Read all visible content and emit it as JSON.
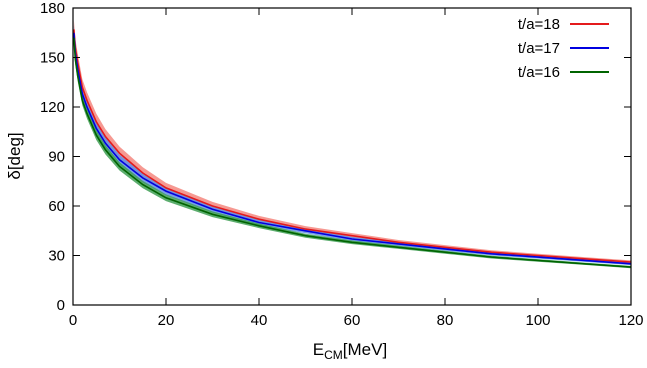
{
  "chart_data": {
    "type": "line",
    "title": "",
    "xlabel_main": "E",
    "xlabel_sub": "CM",
    "xlabel_unit": "[MeV]",
    "ylabel": "δ[deg]",
    "xlim": [
      0,
      120
    ],
    "ylim": [
      0,
      180
    ],
    "xticks": [
      0,
      20,
      40,
      60,
      80,
      100,
      120
    ],
    "yticks": [
      0,
      30,
      60,
      90,
      120,
      150,
      180
    ],
    "grid": false,
    "legend_position": "top-right",
    "series": [
      {
        "name": "t/a=18",
        "color": "#e41a1c",
        "band_color": "#f4877f",
        "x": [
          0.2,
          0.5,
          1,
          2,
          3,
          5,
          7,
          10,
          15,
          20,
          30,
          40,
          50,
          60,
          70,
          80,
          90,
          100,
          110,
          120
        ],
        "y": [
          167,
          156,
          147,
          132,
          124,
          111,
          102,
          92,
          80,
          71,
          60,
          52,
          46,
          42,
          38,
          35,
          32,
          30,
          28,
          26
        ],
        "band": [
          5.5,
          5.5,
          5.5,
          5,
          5,
          5,
          4.5,
          4,
          3.5,
          3,
          2.5,
          2,
          1.8,
          1.6,
          1.4,
          1.3,
          1.2,
          1.1,
          1.0,
          1.0
        ]
      },
      {
        "name": "t/a=17",
        "color": "#0000e0",
        "band_color": "#5f8fe8",
        "x": [
          0.2,
          0.5,
          1,
          2,
          3,
          5,
          7,
          10,
          15,
          20,
          30,
          40,
          50,
          60,
          70,
          80,
          90,
          100,
          110,
          120
        ],
        "y": [
          165,
          153,
          143,
          128,
          120,
          107,
          98,
          88,
          77,
          69,
          58,
          50,
          45,
          40,
          37,
          34,
          31,
          29,
          27,
          25
        ],
        "band": [
          4.5,
          4.5,
          4.5,
          4.5,
          4,
          4,
          3.5,
          3,
          2.8,
          2.4,
          2,
          1.7,
          1.5,
          1.3,
          1.2,
          1.1,
          1.0,
          0.9,
          0.9,
          0.8
        ]
      },
      {
        "name": "t/a=16",
        "color": "#006400",
        "band_color": "#3f9f55",
        "x": [
          0.2,
          0.5,
          1,
          2,
          3,
          5,
          7,
          10,
          15,
          20,
          30,
          40,
          50,
          60,
          70,
          80,
          90,
          100,
          110,
          120
        ],
        "y": [
          162,
          149,
          139,
          124,
          116,
          103,
          94,
          84,
          73,
          65,
          55,
          48,
          42,
          38,
          35,
          32,
          29,
          27,
          25,
          23
        ],
        "band": [
          3.5,
          3.5,
          3.5,
          3,
          3,
          3,
          2.8,
          2.5,
          2.2,
          2,
          1.7,
          1.4,
          1.2,
          1.1,
          1.0,
          0.9,
          0.8,
          0.8,
          0.7,
          0.7
        ]
      }
    ]
  }
}
